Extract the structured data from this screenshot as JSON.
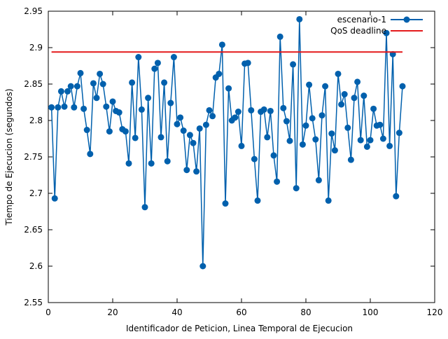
{
  "chart_data": {
    "type": "line",
    "xlabel": "Identificador de Peticion, Linea Temporal de Ejecucion",
    "ylabel": "Tiempo de Ejecucion (segundos)",
    "xlim": [
      0,
      120
    ],
    "xticks": [
      0,
      20,
      40,
      60,
      80,
      100,
      120
    ],
    "ylim": [
      2.55,
      2.95
    ],
    "yticks": [
      2.55,
      2.6,
      2.65,
      2.7,
      2.75,
      2.8,
      2.85,
      2.9,
      2.95
    ],
    "legend": "top-right",
    "series": [
      {
        "name": "escenario-1",
        "color": "#0060ad",
        "markers": true,
        "x": [
          1,
          2,
          3,
          4,
          5,
          6,
          7,
          8,
          9,
          10,
          11,
          12,
          13,
          14,
          15,
          16,
          17,
          18,
          19,
          20,
          21,
          22,
          23,
          24,
          25,
          26,
          27,
          28,
          29,
          30,
          31,
          32,
          33,
          34,
          35,
          36,
          37,
          38,
          39,
          40,
          41,
          42,
          43,
          44,
          45,
          46,
          47,
          48,
          49,
          50,
          51,
          52,
          53,
          54,
          55,
          56,
          57,
          58,
          59,
          60,
          61,
          62,
          63,
          64,
          65,
          66,
          67,
          68,
          69,
          70,
          71,
          72,
          73,
          74,
          75,
          76,
          77,
          78,
          79,
          80,
          81,
          82,
          83,
          84,
          85,
          86,
          87,
          88,
          89,
          90,
          91,
          92,
          93,
          94,
          95,
          96,
          97,
          98,
          99,
          100,
          101,
          102,
          103,
          104,
          105,
          106,
          107,
          108,
          109,
          110
        ],
        "values": [
          2.818,
          2.693,
          2.818,
          2.84,
          2.819,
          2.84,
          2.847,
          2.818,
          2.847,
          2.865,
          2.816,
          2.787,
          2.754,
          2.851,
          2.831,
          2.864,
          2.85,
          2.819,
          2.785,
          2.826,
          2.813,
          2.811,
          2.788,
          2.785,
          2.741,
          2.852,
          2.776,
          2.887,
          2.815,
          2.681,
          2.831,
          2.741,
          2.871,
          2.879,
          2.777,
          2.852,
          2.744,
          2.824,
          2.887,
          2.795,
          2.804,
          2.786,
          2.732,
          2.78,
          2.769,
          2.73,
          2.789,
          2.6,
          2.794,
          2.814,
          2.806,
          2.859,
          2.864,
          2.904,
          2.686,
          2.844,
          2.8,
          2.804,
          2.812,
          2.765,
          2.878,
          2.879,
          2.814,
          2.747,
          2.69,
          2.812,
          2.815,
          2.777,
          2.813,
          2.752,
          2.716,
          2.915,
          2.817,
          2.799,
          2.772,
          2.877,
          2.707,
          2.939,
          2.767,
          2.793,
          2.849,
          2.803,
          2.774,
          2.718,
          2.807,
          2.847,
          2.69,
          2.782,
          2.759,
          2.864,
          2.822,
          2.836,
          2.79,
          2.746,
          2.831,
          2.853,
          2.773,
          2.834,
          2.764,
          2.773,
          2.816,
          2.793,
          2.794,
          2.775,
          2.92,
          2.765,
          2.891,
          2.696,
          2.783,
          2.847
        ]
      },
      {
        "name": "QoS deadline",
        "color": "#e41a1c",
        "markers": false,
        "x": [
          1,
          110
        ],
        "values": [
          2.894,
          2.894
        ]
      }
    ]
  }
}
